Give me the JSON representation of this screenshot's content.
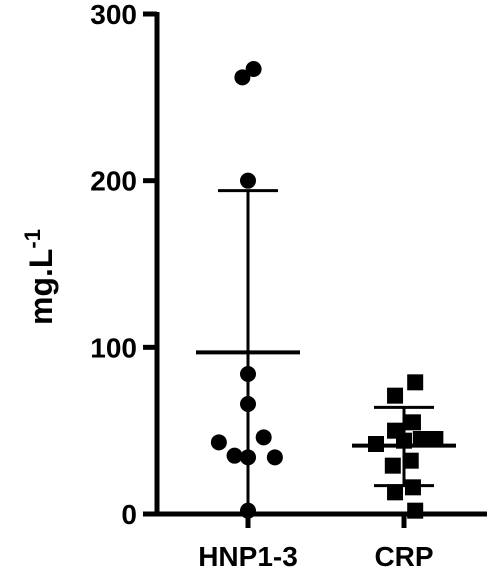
{
  "chart_data": {
    "type": "scatter",
    "ylabel": "mg.L",
    "ylabel_superscript": "-1",
    "ylim": [
      0,
      300
    ],
    "yticks": [
      0,
      100,
      200,
      300
    ],
    "categories": [
      "HNP1-3",
      "CRP"
    ],
    "series": [
      {
        "category": "HNP1-3",
        "marker": "circle",
        "mean": 97,
        "sd_upper": 194,
        "sd_lower": 0,
        "points": [
          {
            "offset": -0.05,
            "y": 262
          },
          {
            "offset": 0.05,
            "y": 267
          },
          {
            "offset": 0.0,
            "y": 200
          },
          {
            "offset": 0.0,
            "y": 84
          },
          {
            "offset": 0.0,
            "y": 66
          },
          {
            "offset": -0.26,
            "y": 43
          },
          {
            "offset": 0.14,
            "y": 46
          },
          {
            "offset": -0.12,
            "y": 35
          },
          {
            "offset": 0.0,
            "y": 34
          },
          {
            "offset": 0.24,
            "y": 34
          },
          {
            "offset": 0.0,
            "y": 2
          }
        ]
      },
      {
        "category": "CRP",
        "marker": "square",
        "mean": 41,
        "sd_upper": 64,
        "sd_lower": 17,
        "points": [
          {
            "offset": 0.1,
            "y": 79
          },
          {
            "offset": -0.08,
            "y": 71
          },
          {
            "offset": 0.08,
            "y": 55
          },
          {
            "offset": -0.08,
            "y": 50
          },
          {
            "offset": -0.25,
            "y": 42
          },
          {
            "offset": 0.0,
            "y": 44
          },
          {
            "offset": 0.15,
            "y": 45
          },
          {
            "offset": 0.28,
            "y": 45
          },
          {
            "offset": 0.06,
            "y": 32
          },
          {
            "offset": -0.1,
            "y": 29
          },
          {
            "offset": -0.08,
            "y": 13
          },
          {
            "offset": 0.08,
            "y": 16
          },
          {
            "offset": 0.1,
            "y": 2
          }
        ]
      }
    ]
  }
}
